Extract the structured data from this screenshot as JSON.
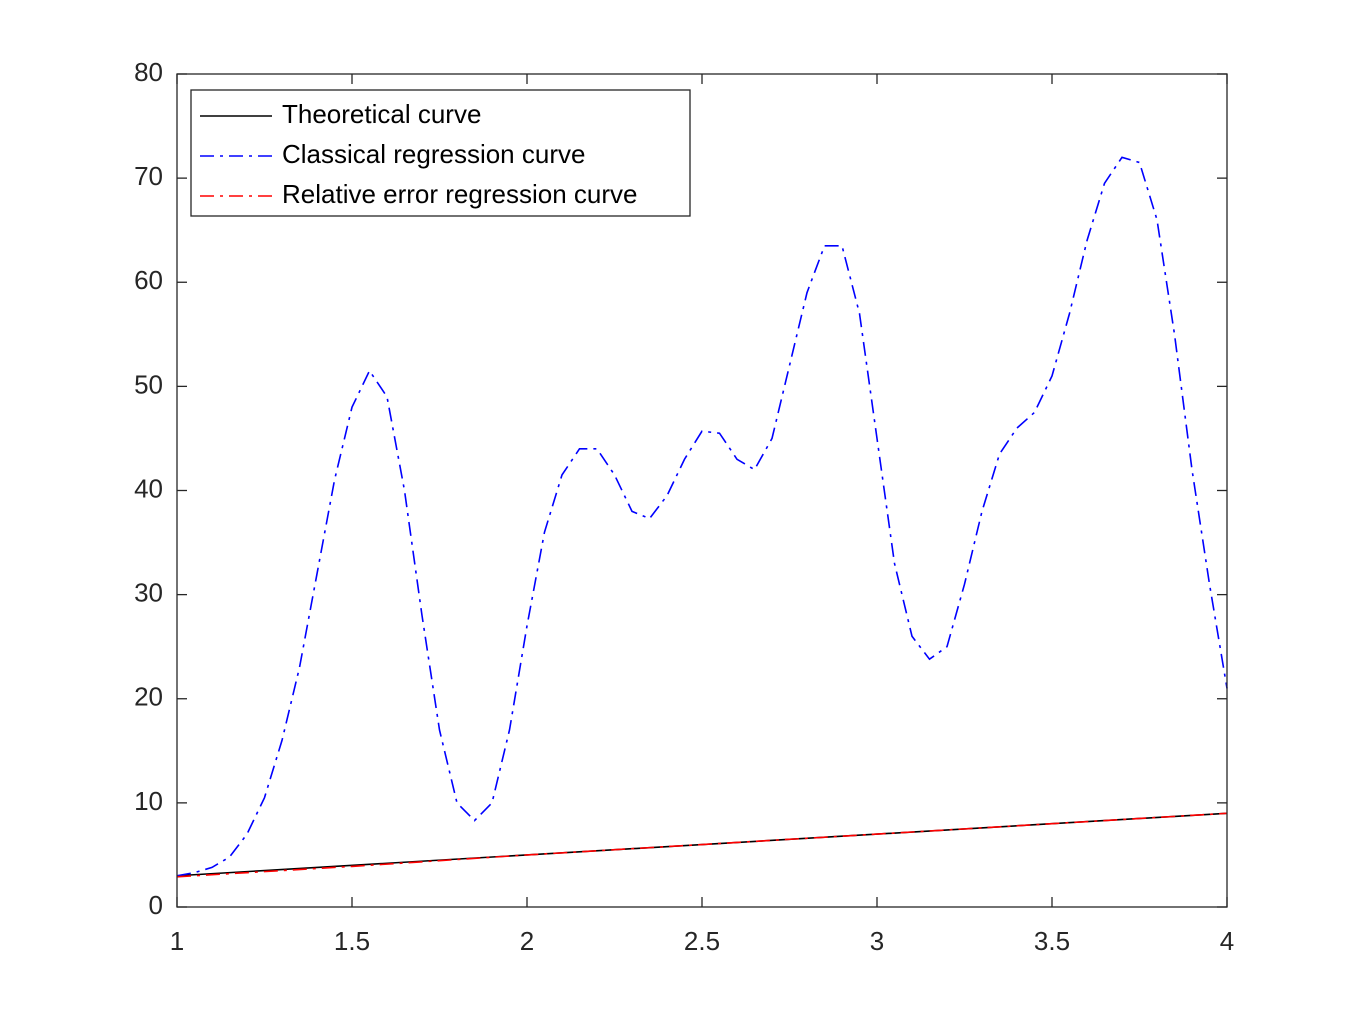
{
  "chart_data": {
    "type": "line",
    "xlim": [
      1,
      4
    ],
    "xticks": [
      1,
      1.5,
      2,
      2.5,
      3,
      3.5,
      4
    ],
    "ylim": [
      0,
      80
    ],
    "yticks": [
      0,
      10,
      20,
      30,
      40,
      50,
      60,
      70,
      80
    ],
    "legend": "upper left",
    "series": [
      {
        "name": "Theoretical curve",
        "color": "#000000",
        "style": "solid",
        "x": [
          1,
          4
        ],
        "values": [
          3,
          9
        ]
      },
      {
        "name": "Classical regression curve",
        "color": "#0000ff",
        "style": "dashdot",
        "x": [
          1,
          1.05,
          1.1,
          1.15,
          1.2,
          1.25,
          1.3,
          1.35,
          1.4,
          1.45,
          1.5,
          1.55,
          1.6,
          1.65,
          1.7,
          1.75,
          1.8,
          1.85,
          1.9,
          1.95,
          2,
          2.05,
          2.1,
          2.15,
          2.2,
          2.25,
          2.3,
          2.35,
          2.4,
          2.45,
          2.5,
          2.55,
          2.6,
          2.65,
          2.7,
          2.75,
          2.8,
          2.85,
          2.9,
          2.95,
          3,
          3.05,
          3.1,
          3.15,
          3.2,
          3.25,
          3.3,
          3.35,
          3.4,
          3.45,
          3.5,
          3.55,
          3.6,
          3.65,
          3.7,
          3.75,
          3.8,
          3.85,
          3.9,
          3.95,
          4
        ],
        "values": [
          3,
          3.3,
          3.8,
          4.8,
          7,
          10.5,
          16,
          23,
          32,
          41,
          48,
          51.5,
          49,
          40,
          28,
          17,
          10,
          8.3,
          10,
          17,
          27,
          36,
          41.5,
          44,
          44,
          41.5,
          38,
          37.3,
          39.5,
          43,
          45.7,
          45.5,
          43,
          42,
          45,
          52,
          59,
          63.5,
          63.5,
          57,
          45,
          33,
          26,
          23.8,
          25,
          31,
          38,
          43.5,
          46,
          47.5,
          51,
          57,
          64,
          69.5,
          72,
          71.5,
          66,
          55,
          42,
          31,
          21
        ]
      },
      {
        "name": "Relative error regression curve",
        "color": "#ff0000",
        "style": "dashdot",
        "x": [
          1,
          1.5,
          2,
          2.5,
          3,
          3.5,
          4
        ],
        "values": [
          2.9,
          3.9,
          5,
          6,
          7,
          8,
          9
        ]
      }
    ]
  }
}
